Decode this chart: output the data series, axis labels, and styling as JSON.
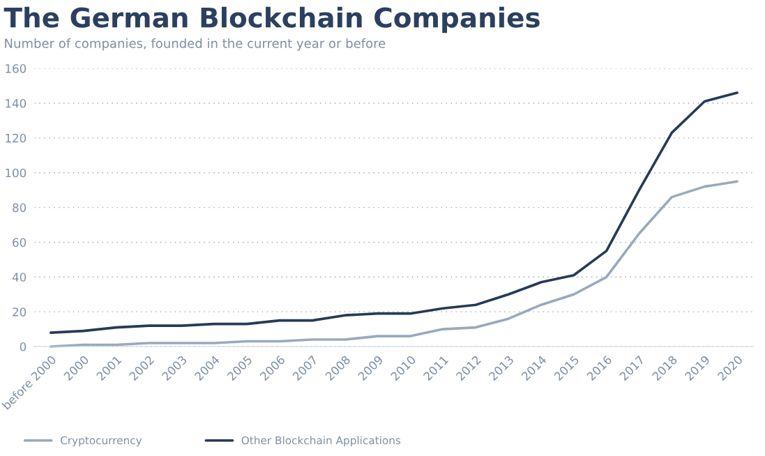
{
  "chart_data": {
    "type": "line",
    "title": "The German Blockchain Companies",
    "subtitle": "Number of companies, founded in the current year or before",
    "categories": [
      "before 2000",
      "2000",
      "2001",
      "2002",
      "2003",
      "2004",
      "2005",
      "2006",
      "2007",
      "2008",
      "2009",
      "2010",
      "2011",
      "2012",
      "2013",
      "2014",
      "2015",
      "2016",
      "2017",
      "2018",
      "2019",
      "2020"
    ],
    "series": [
      {
        "name": "Cryptocurrency",
        "color": "#9aa9bc",
        "values": [
          0,
          1,
          1,
          2,
          2,
          2,
          3,
          3,
          4,
          4,
          6,
          6,
          10,
          11,
          16,
          24,
          30,
          40,
          65,
          86,
          92,
          95
        ]
      },
      {
        "name": "Other Blockchain Applications",
        "color": "#253b57",
        "values": [
          8,
          9,
          11,
          12,
          12,
          13,
          13,
          15,
          15,
          18,
          19,
          19,
          22,
          24,
          30,
          37,
          41,
          55,
          90,
          123,
          141,
          146
        ]
      }
    ],
    "ylim": [
      0,
      160
    ],
    "yticks": [
      0,
      20,
      40,
      60,
      80,
      100,
      120,
      140,
      160
    ],
    "grid": "y",
    "legend": "bottom left",
    "marker": "none",
    "line_style": "solid"
  }
}
